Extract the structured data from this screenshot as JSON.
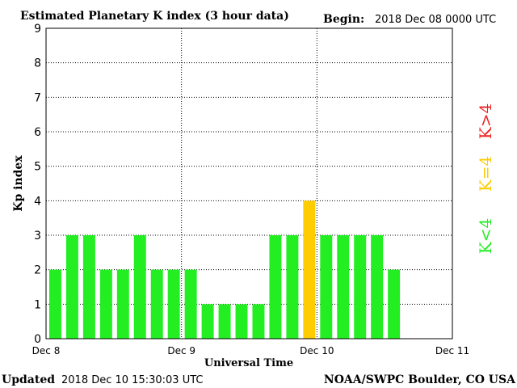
{
  "header": {
    "title": "Estimated Planetary K index (3 hour data)",
    "begin_label": "Begin:",
    "begin_value": "2018 Dec 08 0000 UTC"
  },
  "footer": {
    "updated_label": "Updated",
    "updated_value": "2018 Dec 10 15:30:03 UTC",
    "credit": "NOAA/SWPC Boulder, CO USA"
  },
  "legend": {
    "quiet": {
      "text": "K<4",
      "color": "#22ee22"
    },
    "moderate": {
      "text": "K=4",
      "color": "#ffcc00"
    },
    "storm": {
      "text": "K>4",
      "color": "#ee2222"
    }
  },
  "chart_data": {
    "type": "bar",
    "xlabel": "Universal Time",
    "ylabel": "Kp index",
    "ylim": [
      0,
      9
    ],
    "yticks": [
      0,
      1,
      2,
      3,
      4,
      5,
      6,
      7,
      8,
      9
    ],
    "xticks": [
      "Dec 8",
      "Dec 9",
      "Dec 10",
      "Dec 11"
    ],
    "x_interval_hours": 3,
    "slots_total": 24,
    "values": [
      2,
      3,
      3,
      2,
      2,
      3,
      2,
      2,
      2,
      1,
      1,
      1,
      1,
      3,
      3,
      4,
      3,
      3,
      3,
      3,
      2
    ],
    "colors": {
      "below4": "#22ee22",
      "eq4": "#ffcc00",
      "above4": "#ee2222"
    },
    "grid": true
  }
}
